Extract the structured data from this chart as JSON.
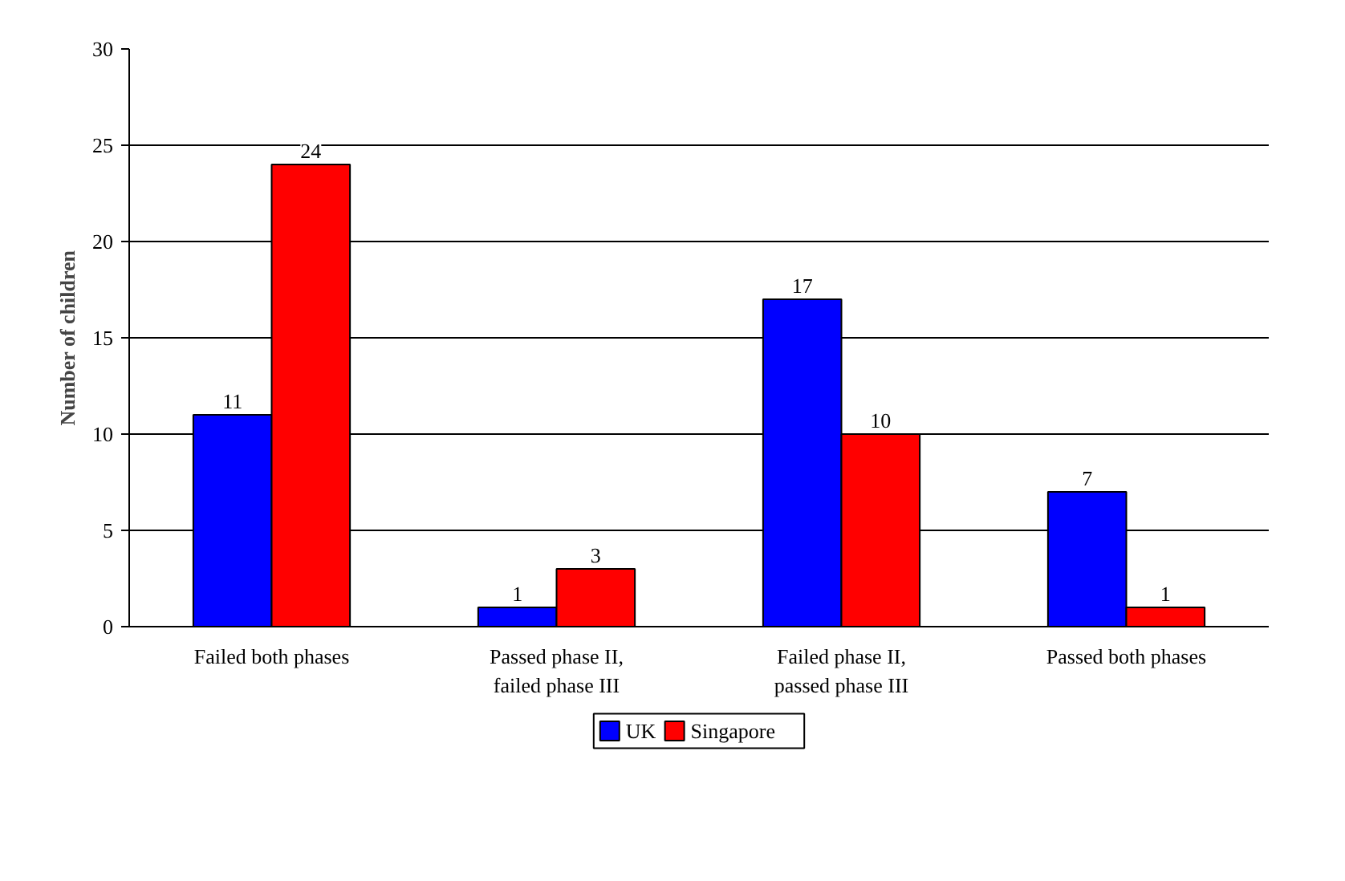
{
  "chart_data": {
    "type": "bar",
    "ylabel": "Number of children",
    "categories": [
      "Failed both phases",
      "Passed phase II,\nfailed phase III",
      "Failed phase II,\npassed phase III",
      "Passed both phases"
    ],
    "series": [
      {
        "name": "UK",
        "color": "#0000ff",
        "values": [
          11,
          1,
          17,
          7
        ]
      },
      {
        "name": "Singapore",
        "color": "#ff0000",
        "values": [
          24,
          3,
          10,
          1
        ]
      }
    ],
    "ylim": [
      0,
      30
    ],
    "yticks": [
      0,
      5,
      10,
      15,
      20,
      25,
      30
    ],
    "grid": "y",
    "legend": "bottom",
    "data_labels": true
  }
}
